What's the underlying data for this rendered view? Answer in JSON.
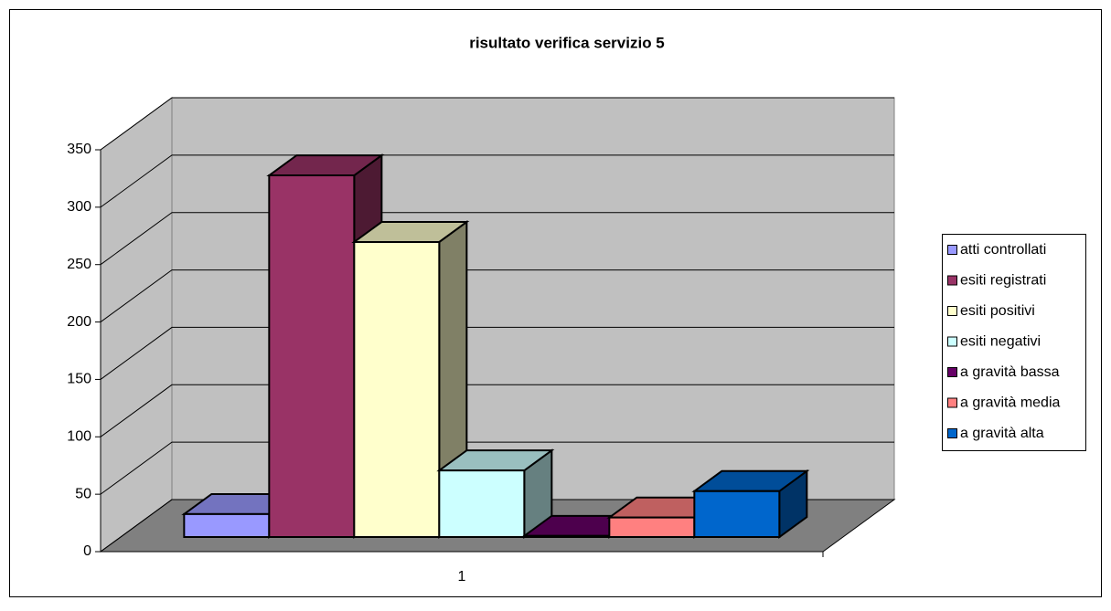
{
  "chart_data": {
    "type": "bar3d",
    "title": "risultato verifica servizio 5",
    "categories": [
      "1"
    ],
    "series": [
      {
        "name": "atti controllati",
        "color": "#9999ff",
        "values": [
          20
        ]
      },
      {
        "name": "esiti registrati",
        "color": "#993366",
        "values": [
          315
        ]
      },
      {
        "name": "esiti positivi",
        "color": "#ffffcc",
        "values": [
          257
        ]
      },
      {
        "name": "esiti negativi",
        "color": "#ccffff",
        "values": [
          58
        ]
      },
      {
        "name": "a gravità bassa",
        "color": "#660066",
        "values": [
          1
        ]
      },
      {
        "name": "a gravità media",
        "color": "#ff8080",
        "values": [
          17
        ]
      },
      {
        "name": "a gravità alta",
        "color": "#0066cc",
        "values": [
          40
        ]
      }
    ],
    "ylim": [
      0,
      350
    ],
    "yticks": [
      0,
      50,
      100,
      150,
      200,
      250,
      300,
      350
    ],
    "grid": true,
    "legend": "right"
  }
}
